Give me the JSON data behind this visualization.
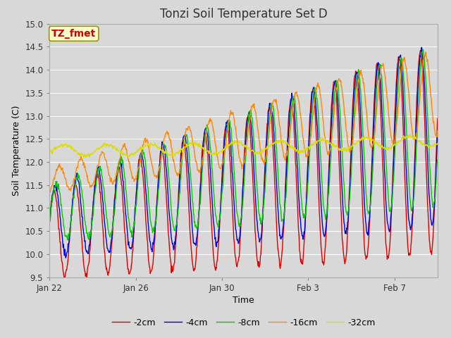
{
  "title": "Tonzi Soil Temperature Set D",
  "xlabel": "Time",
  "ylabel": "Soil Temperature (C)",
  "annotation": "TZ_fmet",
  "ylim": [
    9.5,
    15.0
  ],
  "yticks": [
    9.5,
    10.0,
    10.5,
    11.0,
    11.5,
    12.0,
    12.5,
    13.0,
    13.5,
    14.0,
    14.5,
    15.0
  ],
  "xtick_labels": [
    "Jan 22",
    "Jan 26",
    "Jan 30",
    "Feb 3",
    "Feb 7"
  ],
  "series_colors": [
    "#dd0000",
    "#0000dd",
    "#00cc00",
    "#ff8800",
    "#dddd00"
  ],
  "series_labels": [
    "-2cm",
    "-4cm",
    "-8cm",
    "-16cm",
    "-32cm"
  ],
  "bg_color": "#d8d8d8",
  "plot_bg_color": "#d8d8d8",
  "grid_color": "#ffffff",
  "annotation_bg": "#ffffcc",
  "annotation_border": "#999900",
  "annotation_text_color": "#cc0000"
}
